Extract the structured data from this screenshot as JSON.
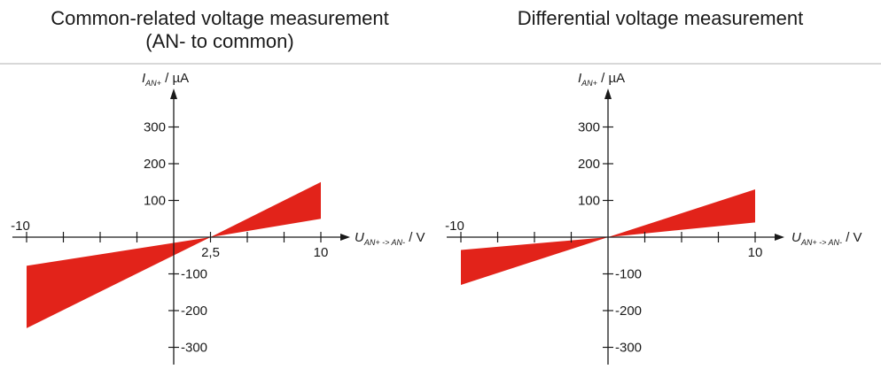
{
  "titles": {
    "left_line1": "Common-related voltage measurement",
    "left_line2": "(AN- to common)",
    "right": "Differential voltage measurement"
  },
  "axes": {
    "y_var": "I",
    "y_sub": "AN+",
    "y_unit": " / µA",
    "x_var": "U",
    "x_sub": "AN+ -> AN-",
    "x_unit": " / V"
  },
  "colors": {
    "band": "#e2231a",
    "axis": "#1a1a1a",
    "divider": "#b0b0b0"
  },
  "chart_data": [
    {
      "type": "area",
      "title": "Common-related voltage measurement (AN- to common)",
      "xlabel": "U AN+ -> AN- / V",
      "ylabel": "I AN+ / µA",
      "xlim": [
        -10.8,
        10.8
      ],
      "ylim": [
        -330,
        420
      ],
      "x_tick_labels": [
        "-10",
        "2,5",
        "10"
      ],
      "y_tick_labels": [
        "300",
        "200",
        "100",
        "-100",
        "-200",
        "-300"
      ],
      "series": [
        {
          "x": [
            -10,
            2.5,
            10
          ],
          "y_upper": [
            -78,
            0,
            150
          ],
          "y_lower": [
            -248,
            0,
            50
          ]
        }
      ]
    },
    {
      "type": "area",
      "title": "Differential voltage measurement",
      "xlabel": "U AN+ -> AN- / V",
      "ylabel": "I AN+ / µA",
      "xlim": [
        -10.8,
        10.8
      ],
      "ylim": [
        -330,
        420
      ],
      "x_tick_labels": [
        "-10",
        "10"
      ],
      "y_tick_labels": [
        "300",
        "200",
        "100",
        "-100",
        "-200",
        "-300"
      ],
      "series": [
        {
          "x": [
            -10,
            0,
            10
          ],
          "y_upper": [
            -35,
            0,
            130
          ],
          "y_lower": [
            -130,
            0,
            40
          ]
        }
      ]
    }
  ]
}
